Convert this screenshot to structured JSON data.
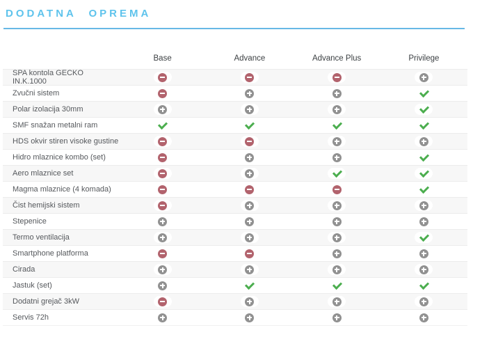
{
  "page": {
    "title": "DODATNA OPREMA",
    "accent_color": "#5ec3ec",
    "rule_color": "#67b8e6"
  },
  "table": {
    "columns": [
      "Base",
      "Advance",
      "Advance Plus",
      "Privilege"
    ],
    "icon_colors": {
      "minus": "#b2636d",
      "plus": "#919191",
      "check": "#4cae4f"
    },
    "icon_names": {
      "minus": "minus-icon",
      "plus": "plus-icon",
      "check": "check-icon"
    },
    "rows": [
      {
        "label": "SPA kontola GECKO IN.K.1000",
        "values": [
          "minus",
          "minus",
          "minus",
          "plus"
        ]
      },
      {
        "label": "Zvučni sistem",
        "values": [
          "minus",
          "plus",
          "plus",
          "check"
        ]
      },
      {
        "label": "Polar izolacija 30mm",
        "values": [
          "plus",
          "plus",
          "plus",
          "check"
        ]
      },
      {
        "label": "SMF snažan metalni ram",
        "values": [
          "check",
          "check",
          "check",
          "check"
        ]
      },
      {
        "label": "HDS okvir stiren visoke gustine",
        "values": [
          "minus",
          "minus",
          "plus",
          "plus"
        ]
      },
      {
        "label": "Hidro mlaznice kombo (set)",
        "values": [
          "minus",
          "plus",
          "plus",
          "check"
        ]
      },
      {
        "label": "Aero mlaznice set",
        "values": [
          "minus",
          "plus",
          "check",
          "check"
        ]
      },
      {
        "label": "Magma mlaznice (4 komada)",
        "values": [
          "minus",
          "minus",
          "minus",
          "check"
        ]
      },
      {
        "label": "Čist hemijski sistem",
        "values": [
          "minus",
          "plus",
          "plus",
          "plus"
        ]
      },
      {
        "label": "Stepenice",
        "values": [
          "plus",
          "plus",
          "plus",
          "plus"
        ]
      },
      {
        "label": "Termo ventilacija",
        "values": [
          "plus",
          "plus",
          "plus",
          "check"
        ]
      },
      {
        "label": "Smartphone platforma",
        "values": [
          "minus",
          "minus",
          "plus",
          "plus"
        ]
      },
      {
        "label": "Cirada",
        "values": [
          "plus",
          "plus",
          "plus",
          "plus"
        ]
      },
      {
        "label": "Jastuk (set)",
        "values": [
          "plus",
          "check",
          "check",
          "check"
        ]
      },
      {
        "label": "Dodatni grejač 3kW",
        "values": [
          "minus",
          "plus",
          "plus",
          "plus"
        ]
      },
      {
        "label": "Servis 72h",
        "values": [
          "plus",
          "plus",
          "plus",
          "plus"
        ]
      }
    ]
  }
}
